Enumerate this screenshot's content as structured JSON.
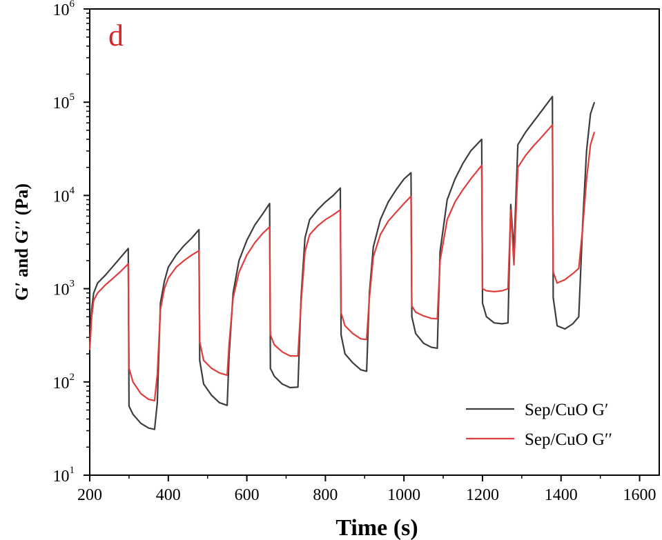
{
  "chart_data": {
    "type": "line",
    "panel_label": "d",
    "panel_label_color": "#d62728",
    "xlabel": "Time (s)",
    "ylabel": "G′ and G′′  (Pa)",
    "xlim": [
      200,
      1650
    ],
    "ylim": [
      10,
      1000000
    ],
    "yscale": "log",
    "xticks": [
      200,
      400,
      600,
      800,
      1000,
      1200,
      1400,
      1600
    ],
    "yticks": [
      {
        "value": 10,
        "base": "10",
        "exp": "1"
      },
      {
        "value": 100,
        "base": "10",
        "exp": "2"
      },
      {
        "value": 1000,
        "base": "10",
        "exp": "3"
      },
      {
        "value": 10000,
        "base": "10",
        "exp": "4"
      },
      {
        "value": 100000,
        "base": "10",
        "exp": "5"
      },
      {
        "value": 1000000,
        "base": "10",
        "exp": "6"
      }
    ],
    "grid": false,
    "legend_position": "bottom-right",
    "series": [
      {
        "name": "Sep/CuO  G′",
        "color": "#3c3c3c",
        "points": [
          [
            200,
            250
          ],
          [
            205,
            600
          ],
          [
            210,
            900
          ],
          [
            220,
            1150
          ],
          [
            240,
            1400
          ],
          [
            260,
            1750
          ],
          [
            280,
            2200
          ],
          [
            298,
            2700
          ],
          [
            300,
            55
          ],
          [
            310,
            45
          ],
          [
            330,
            36
          ],
          [
            350,
            32
          ],
          [
            365,
            31
          ],
          [
            372,
            60
          ],
          [
            380,
            700
          ],
          [
            390,
            1200
          ],
          [
            400,
            1700
          ],
          [
            420,
            2300
          ],
          [
            440,
            2900
          ],
          [
            460,
            3500
          ],
          [
            478,
            4300
          ],
          [
            480,
            170
          ],
          [
            490,
            95
          ],
          [
            510,
            72
          ],
          [
            530,
            60
          ],
          [
            550,
            56
          ],
          [
            555,
            200
          ],
          [
            565,
            900
          ],
          [
            580,
            2000
          ],
          [
            600,
            3300
          ],
          [
            620,
            4800
          ],
          [
            640,
            6300
          ],
          [
            658,
            8200
          ],
          [
            660,
            140
          ],
          [
            670,
            115
          ],
          [
            690,
            95
          ],
          [
            710,
            87
          ],
          [
            730,
            88
          ],
          [
            738,
            800
          ],
          [
            748,
            3500
          ],
          [
            760,
            5500
          ],
          [
            780,
            7000
          ],
          [
            800,
            8500
          ],
          [
            820,
            10000
          ],
          [
            838,
            12000
          ],
          [
            840,
            320
          ],
          [
            850,
            200
          ],
          [
            870,
            160
          ],
          [
            890,
            135
          ],
          [
            905,
            130
          ],
          [
            912,
            900
          ],
          [
            922,
            2800
          ],
          [
            940,
            5500
          ],
          [
            960,
            8500
          ],
          [
            980,
            11500
          ],
          [
            1000,
            15000
          ],
          [
            1018,
            17500
          ],
          [
            1020,
            500
          ],
          [
            1030,
            330
          ],
          [
            1050,
            260
          ],
          [
            1070,
            235
          ],
          [
            1085,
            230
          ],
          [
            1092,
            2500
          ],
          [
            1110,
            9000
          ],
          [
            1130,
            15000
          ],
          [
            1150,
            22000
          ],
          [
            1170,
            30000
          ],
          [
            1198,
            40000
          ],
          [
            1200,
            700
          ],
          [
            1210,
            500
          ],
          [
            1230,
            430
          ],
          [
            1250,
            420
          ],
          [
            1265,
            430
          ],
          [
            1272,
            8000
          ],
          [
            1280,
            2500
          ],
          [
            1290,
            35000
          ],
          [
            1310,
            48000
          ],
          [
            1330,
            62000
          ],
          [
            1350,
            80000
          ],
          [
            1378,
            115000
          ],
          [
            1380,
            800
          ],
          [
            1390,
            400
          ],
          [
            1410,
            370
          ],
          [
            1430,
            420
          ],
          [
            1445,
            500
          ],
          [
            1455,
            5000
          ],
          [
            1465,
            30000
          ],
          [
            1475,
            75000
          ],
          [
            1485,
            100000
          ]
        ]
      },
      {
        "name": "Sep/CuO  G′′",
        "color": "#e03c3c",
        "points": [
          [
            200,
            220
          ],
          [
            205,
            500
          ],
          [
            210,
            750
          ],
          [
            220,
            900
          ],
          [
            240,
            1100
          ],
          [
            260,
            1300
          ],
          [
            280,
            1550
          ],
          [
            298,
            1850
          ],
          [
            300,
            140
          ],
          [
            310,
            100
          ],
          [
            330,
            75
          ],
          [
            350,
            65
          ],
          [
            365,
            63
          ],
          [
            372,
            120
          ],
          [
            380,
            600
          ],
          [
            390,
            1000
          ],
          [
            400,
            1300
          ],
          [
            420,
            1700
          ],
          [
            440,
            2000
          ],
          [
            460,
            2300
          ],
          [
            478,
            2550
          ],
          [
            480,
            270
          ],
          [
            490,
            170
          ],
          [
            510,
            140
          ],
          [
            530,
            125
          ],
          [
            550,
            118
          ],
          [
            555,
            260
          ],
          [
            565,
            800
          ],
          [
            580,
            1500
          ],
          [
            600,
            2300
          ],
          [
            620,
            3100
          ],
          [
            640,
            3900
          ],
          [
            658,
            4600
          ],
          [
            660,
            320
          ],
          [
            670,
            250
          ],
          [
            690,
            210
          ],
          [
            710,
            190
          ],
          [
            730,
            190
          ],
          [
            738,
            700
          ],
          [
            748,
            2500
          ],
          [
            760,
            3800
          ],
          [
            780,
            4700
          ],
          [
            800,
            5500
          ],
          [
            820,
            6200
          ],
          [
            838,
            7000
          ],
          [
            840,
            550
          ],
          [
            850,
            400
          ],
          [
            870,
            330
          ],
          [
            890,
            290
          ],
          [
            905,
            285
          ],
          [
            912,
            800
          ],
          [
            922,
            2200
          ],
          [
            940,
            3800
          ],
          [
            960,
            5300
          ],
          [
            980,
            6600
          ],
          [
            1000,
            8200
          ],
          [
            1018,
            9800
          ],
          [
            1020,
            650
          ],
          [
            1030,
            560
          ],
          [
            1050,
            510
          ],
          [
            1070,
            480
          ],
          [
            1085,
            475
          ],
          [
            1092,
            2000
          ],
          [
            1110,
            5500
          ],
          [
            1130,
            8500
          ],
          [
            1150,
            11500
          ],
          [
            1170,
            15000
          ],
          [
            1198,
            21000
          ],
          [
            1200,
            1000
          ],
          [
            1210,
            950
          ],
          [
            1230,
            930
          ],
          [
            1250,
            950
          ],
          [
            1265,
            1000
          ],
          [
            1272,
            7000
          ],
          [
            1280,
            1800
          ],
          [
            1290,
            20000
          ],
          [
            1310,
            27000
          ],
          [
            1330,
            34000
          ],
          [
            1350,
            42000
          ],
          [
            1378,
            57000
          ],
          [
            1380,
            1500
          ],
          [
            1390,
            1150
          ],
          [
            1410,
            1250
          ],
          [
            1430,
            1450
          ],
          [
            1445,
            1650
          ],
          [
            1455,
            4500
          ],
          [
            1465,
            15000
          ],
          [
            1475,
            35000
          ],
          [
            1485,
            48000
          ]
        ]
      }
    ]
  }
}
